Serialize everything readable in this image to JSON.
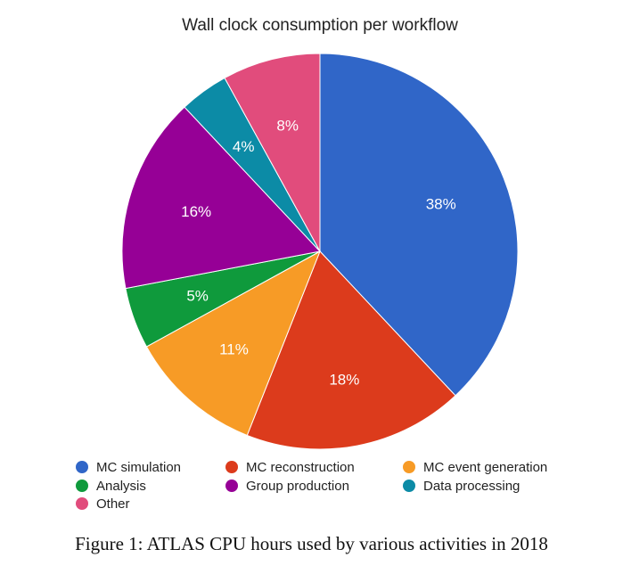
{
  "chart_data": {
    "type": "pie",
    "title": "Wall clock consumption per workflow",
    "slices": [
      {
        "label": "MC simulation",
        "value": 38,
        "display": "38%",
        "color": "#3066c8"
      },
      {
        "label": "MC reconstruction",
        "value": 18,
        "display": "18%",
        "color": "#dc3b1c"
      },
      {
        "label": "MC event generation",
        "value": 11,
        "display": "11%",
        "color": "#f79b26"
      },
      {
        "label": "Analysis",
        "value": 5,
        "display": "5%",
        "color": "#0f9a3c"
      },
      {
        "label": "Group production",
        "value": 16,
        "display": "16%",
        "color": "#960096"
      },
      {
        "label": "Data processing",
        "value": 4,
        "display": "4%",
        "color": "#0c8ba6"
      },
      {
        "label": "Other",
        "value": 8,
        "display": "8%",
        "color": "#e14c7c"
      }
    ],
    "legend_position": "bottom",
    "start_angle": "12 o'clock",
    "direction": "clockwise"
  },
  "caption": "Figure 1: ATLAS CPU hours used by various activities in 2018"
}
